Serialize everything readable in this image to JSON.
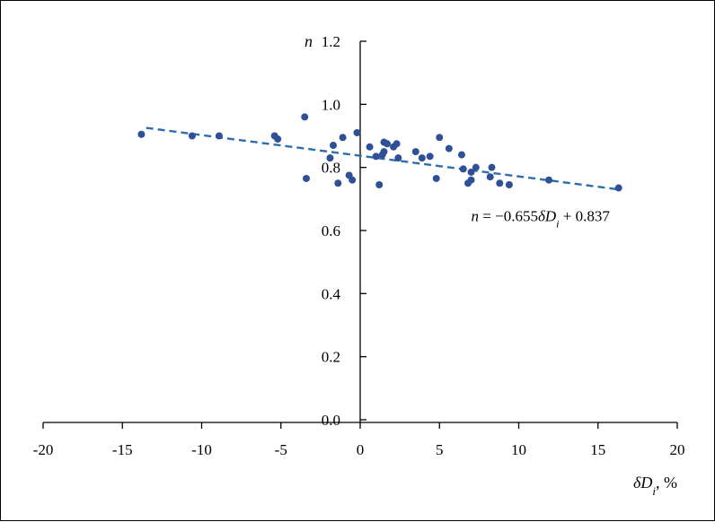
{
  "chart_data": {
    "type": "scatter",
    "xlabel": "δD_i, %",
    "ylabel": "n",
    "xlim": [
      -20,
      20
    ],
    "ylim": [
      0.0,
      1.2
    ],
    "x_ticks": [
      -20,
      -15,
      -10,
      -5,
      0,
      5,
      10,
      15,
      20
    ],
    "x_tick_labels": [
      "-20",
      "-15",
      "-10",
      "-5",
      "0",
      "5",
      "10",
      "15",
      "20"
    ],
    "y_ticks": [
      0.0,
      0.2,
      0.4,
      0.6,
      0.8,
      1.0,
      1.2
    ],
    "y_tick_labels": [
      "0.0",
      "0.2",
      "0.4",
      "0.6",
      "0.8",
      "1.0",
      "1.2"
    ],
    "grid": false,
    "legend": "none",
    "series": [
      {
        "type": "scatter",
        "color": "#2f4f96",
        "points": [
          [
            -13.8,
            0.905
          ],
          [
            -10.6,
            0.9
          ],
          [
            -8.9,
            0.9
          ],
          [
            -5.4,
            0.9
          ],
          [
            -5.2,
            0.89
          ],
          [
            -3.5,
            0.96
          ],
          [
            -3.4,
            0.765
          ],
          [
            -1.9,
            0.83
          ],
          [
            -1.7,
            0.87
          ],
          [
            -1.4,
            0.75
          ],
          [
            -1.1,
            0.895
          ],
          [
            -0.7,
            0.775
          ],
          [
            -0.5,
            0.76
          ],
          [
            -0.2,
            0.91
          ],
          [
            0.6,
            0.865
          ],
          [
            1.0,
            0.835
          ],
          [
            1.2,
            0.745
          ],
          [
            1.4,
            0.84
          ],
          [
            1.5,
            0.88
          ],
          [
            1.5,
            0.85
          ],
          [
            1.7,
            0.875
          ],
          [
            2.1,
            0.865
          ],
          [
            2.3,
            0.875
          ],
          [
            2.4,
            0.83
          ],
          [
            3.5,
            0.85
          ],
          [
            3.9,
            0.83
          ],
          [
            4.4,
            0.835
          ],
          [
            4.8,
            0.765
          ],
          [
            5.0,
            0.895
          ],
          [
            5.6,
            0.86
          ],
          [
            6.4,
            0.84
          ],
          [
            6.5,
            0.795
          ],
          [
            6.8,
            0.75
          ],
          [
            7.0,
            0.785
          ],
          [
            7.0,
            0.76
          ],
          [
            7.3,
            0.8
          ],
          [
            8.2,
            0.77
          ],
          [
            8.3,
            0.8
          ],
          [
            8.8,
            0.75
          ],
          [
            9.4,
            0.745
          ],
          [
            11.9,
            0.76
          ],
          [
            16.3,
            0.735
          ]
        ]
      },
      {
        "type": "line",
        "style": "dashed",
        "color": "#2e6eaa",
        "x": [
          -13.5,
          16.3
        ],
        "y": [
          0.9254,
          0.7302
        ]
      }
    ],
    "annotation": {
      "text": "n = −0.655δD_i + 0.837",
      "x": 7.0,
      "y": 0.63
    }
  }
}
